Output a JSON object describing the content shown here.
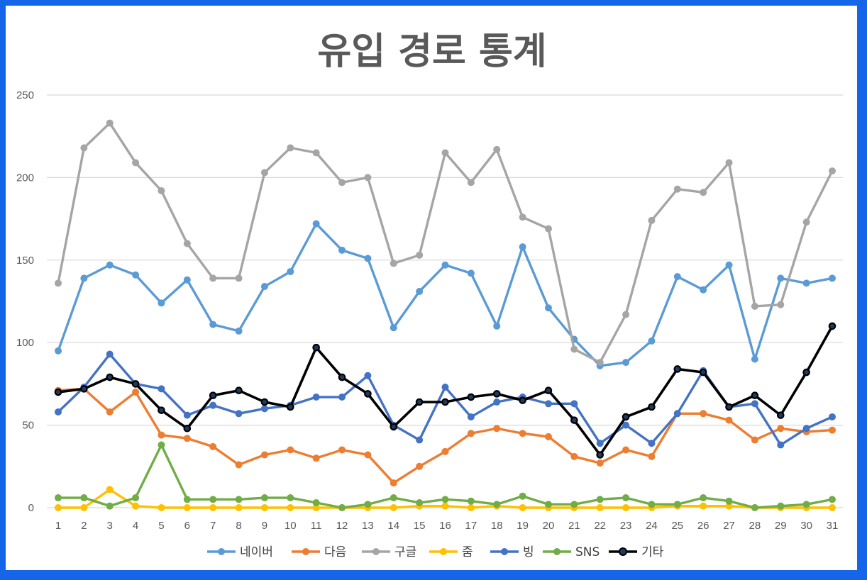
{
  "chart_data": {
    "type": "line",
    "title": "유입 경로 통계",
    "xlabel": "",
    "ylabel": "",
    "ylim": [
      0,
      250
    ],
    "yticks": [
      0,
      50,
      100,
      150,
      200,
      250
    ],
    "x": [
      1,
      2,
      3,
      4,
      5,
      6,
      7,
      8,
      9,
      10,
      11,
      12,
      13,
      14,
      15,
      16,
      17,
      18,
      19,
      20,
      21,
      22,
      23,
      24,
      25,
      26,
      27,
      28,
      29,
      30,
      31
    ],
    "grid": "horizontal",
    "legend_position": "bottom",
    "series": [
      {
        "name": "네이버",
        "color": "#5b9bd5",
        "values": [
          95,
          139,
          147,
          141,
          124,
          138,
          111,
          107,
          134,
          143,
          172,
          156,
          151,
          109,
          131,
          147,
          142,
          110,
          158,
          121,
          102,
          86,
          88,
          101,
          140,
          132,
          147,
          90,
          139,
          136,
          139
        ]
      },
      {
        "name": "다음",
        "color": "#ed7d31",
        "values": [
          71,
          72,
          58,
          70,
          44,
          42,
          37,
          26,
          32,
          35,
          30,
          35,
          32,
          15,
          25,
          34,
          45,
          48,
          45,
          43,
          31,
          27,
          35,
          31,
          57,
          57,
          53,
          41,
          48,
          46,
          47
        ]
      },
      {
        "name": "구글",
        "color": "#a5a5a5",
        "values": [
          136,
          218,
          233,
          209,
          192,
          160,
          139,
          139,
          203,
          218,
          215,
          197,
          200,
          148,
          153,
          215,
          197,
          217,
          176,
          169,
          96,
          88,
          117,
          174,
          193,
          191,
          209,
          122,
          123,
          173,
          204
        ]
      },
      {
        "name": "줌",
        "color": "#ffc000",
        "values": [
          0,
          0,
          11,
          1,
          0,
          0,
          0,
          0,
          0,
          0,
          0,
          0,
          0,
          0,
          1,
          1,
          0,
          1,
          0,
          0,
          0,
          0,
          0,
          0,
          1,
          1,
          1,
          0,
          0,
          0,
          0
        ]
      },
      {
        "name": "빙",
        "color": "#4472c4",
        "values": [
          58,
          73,
          93,
          75,
          72,
          56,
          62,
          57,
          60,
          62,
          67,
          67,
          80,
          50,
          41,
          73,
          55,
          64,
          67,
          63,
          63,
          39,
          50,
          39,
          57,
          83,
          61,
          63,
          38,
          48,
          55
        ]
      },
      {
        "name": "SNS",
        "color": "#70ad47",
        "values": [
          6,
          6,
          1,
          6,
          38,
          5,
          5,
          5,
          6,
          6,
          3,
          0,
          2,
          6,
          3,
          5,
          4,
          2,
          7,
          2,
          2,
          5,
          6,
          2,
          2,
          6,
          4,
          0,
          1,
          2,
          5
        ]
      },
      {
        "name": "기타",
        "color": "#000000",
        "values": [
          70,
          72,
          79,
          75,
          59,
          48,
          68,
          71,
          64,
          61,
          97,
          79,
          69,
          49,
          64,
          64,
          67,
          69,
          65,
          71,
          53,
          32,
          55,
          61,
          84,
          82,
          61,
          68,
          56,
          82,
          110
        ]
      }
    ]
  }
}
